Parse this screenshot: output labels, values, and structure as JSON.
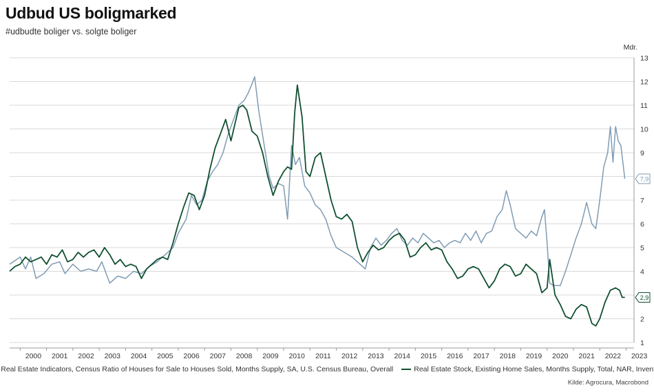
{
  "chart_data": {
    "type": "line",
    "title": "Udbud US boligmarked",
    "subtitle": "#udbudte boliger vs. solgte boliger",
    "ylabel": "Mdr.",
    "ylim": [
      1,
      13
    ],
    "yticks": [
      1,
      2,
      3,
      4,
      5,
      6,
      7,
      8,
      9,
      10,
      11,
      12,
      13
    ],
    "xlim": [
      1999.6,
      2023.3
    ],
    "xticks": [
      "2000",
      "2001",
      "2002",
      "2003",
      "2004",
      "2005",
      "2006",
      "2007",
      "2008",
      "2009",
      "2010",
      "2011",
      "2012",
      "2013",
      "2014",
      "2015",
      "2016",
      "2017",
      "2018",
      "2019",
      "2020",
      "2021",
      "2022",
      "2023"
    ],
    "source": "Kilde: Agrocura, Macrobond",
    "series": [
      {
        "name": "Real Estate Indicators, Census Ratio of Houses for Sale to Houses Sold, Months Supply, SA, U.S. Census Bureau, Overall",
        "color": "#7f9bb3",
        "end_label": "7,9",
        "points": [
          [
            1999.6,
            4.3
          ],
          [
            2000.0,
            4.6
          ],
          [
            2000.2,
            4.1
          ],
          [
            2000.4,
            4.6
          ],
          [
            2000.6,
            3.7
          ],
          [
            2000.9,
            3.9
          ],
          [
            2001.2,
            4.3
          ],
          [
            2001.5,
            4.4
          ],
          [
            2001.7,
            3.9
          ],
          [
            2002.0,
            4.3
          ],
          [
            2002.3,
            4.0
          ],
          [
            2002.6,
            4.1
          ],
          [
            2002.9,
            4.0
          ],
          [
            2003.1,
            4.4
          ],
          [
            2003.4,
            3.5
          ],
          [
            2003.7,
            3.8
          ],
          [
            2004.0,
            3.7
          ],
          [
            2004.3,
            4.0
          ],
          [
            2004.6,
            3.9
          ],
          [
            2004.9,
            4.2
          ],
          [
            2005.2,
            4.4
          ],
          [
            2005.5,
            4.7
          ],
          [
            2005.8,
            5.0
          ],
          [
            2006.0,
            5.6
          ],
          [
            2006.3,
            6.2
          ],
          [
            2006.5,
            7.2
          ],
          [
            2006.7,
            6.8
          ],
          [
            2006.9,
            7.0
          ],
          [
            2007.1,
            7.8
          ],
          [
            2007.3,
            8.2
          ],
          [
            2007.5,
            8.5
          ],
          [
            2007.7,
            9.0
          ],
          [
            2007.9,
            9.8
          ],
          [
            2008.1,
            10.4
          ],
          [
            2008.3,
            11.0
          ],
          [
            2008.5,
            11.2
          ],
          [
            2008.65,
            11.5
          ],
          [
            2008.8,
            11.9
          ],
          [
            2008.9,
            12.2
          ],
          [
            2009.05,
            10.8
          ],
          [
            2009.25,
            9.4
          ],
          [
            2009.45,
            8.0
          ],
          [
            2009.6,
            7.5
          ],
          [
            2009.8,
            7.7
          ],
          [
            2010.0,
            7.6
          ],
          [
            2010.15,
            6.2
          ],
          [
            2010.3,
            9.3
          ],
          [
            2010.45,
            8.5
          ],
          [
            2010.6,
            8.8
          ],
          [
            2010.8,
            7.6
          ],
          [
            2011.0,
            7.3
          ],
          [
            2011.2,
            6.8
          ],
          [
            2011.4,
            6.6
          ],
          [
            2011.6,
            6.2
          ],
          [
            2011.8,
            5.5
          ],
          [
            2012.0,
            5.0
          ],
          [
            2012.3,
            4.8
          ],
          [
            2012.6,
            4.6
          ],
          [
            2012.9,
            4.3
          ],
          [
            2013.1,
            4.1
          ],
          [
            2013.3,
            5.0
          ],
          [
            2013.5,
            5.4
          ],
          [
            2013.7,
            5.1
          ],
          [
            2013.9,
            5.3
          ],
          [
            2014.1,
            5.6
          ],
          [
            2014.3,
            5.8
          ],
          [
            2014.5,
            5.3
          ],
          [
            2014.7,
            5.1
          ],
          [
            2014.9,
            5.4
          ],
          [
            2015.1,
            5.2
          ],
          [
            2015.3,
            5.6
          ],
          [
            2015.5,
            5.4
          ],
          [
            2015.7,
            5.2
          ],
          [
            2015.9,
            5.3
          ],
          [
            2016.1,
            5.0
          ],
          [
            2016.3,
            5.2
          ],
          [
            2016.5,
            5.3
          ],
          [
            2016.7,
            5.2
          ],
          [
            2016.9,
            5.6
          ],
          [
            2017.1,
            5.3
          ],
          [
            2017.3,
            5.7
          ],
          [
            2017.5,
            5.2
          ],
          [
            2017.7,
            5.6
          ],
          [
            2017.9,
            5.7
          ],
          [
            2018.1,
            6.3
          ],
          [
            2018.3,
            6.6
          ],
          [
            2018.45,
            7.4
          ],
          [
            2018.6,
            6.8
          ],
          [
            2018.8,
            5.8
          ],
          [
            2019.0,
            5.6
          ],
          [
            2019.2,
            5.4
          ],
          [
            2019.4,
            5.7
          ],
          [
            2019.6,
            5.5
          ],
          [
            2019.8,
            6.3
          ],
          [
            2019.9,
            6.6
          ],
          [
            2020.0,
            5.2
          ],
          [
            2020.1,
            3.5
          ],
          [
            2020.25,
            3.4
          ],
          [
            2020.5,
            3.4
          ],
          [
            2020.7,
            4.0
          ],
          [
            2020.9,
            4.7
          ],
          [
            2021.1,
            5.4
          ],
          [
            2021.3,
            6.0
          ],
          [
            2021.5,
            6.9
          ],
          [
            2021.7,
            6.0
          ],
          [
            2021.85,
            5.8
          ],
          [
            2022.0,
            7.0
          ],
          [
            2022.15,
            8.4
          ],
          [
            2022.3,
            9.0
          ],
          [
            2022.4,
            10.1
          ],
          [
            2022.5,
            8.6
          ],
          [
            2022.6,
            10.1
          ],
          [
            2022.7,
            9.5
          ],
          [
            2022.8,
            9.3
          ],
          [
            2022.95,
            7.9
          ]
        ]
      },
      {
        "name": "Real Estate Stock, Existing Home Sales, Months Supply, Total, NAR, Inventory",
        "color": "#0f4f2f",
        "end_label": "2,9",
        "points": [
          [
            1999.6,
            4.0
          ],
          [
            1999.8,
            4.2
          ],
          [
            2000.0,
            4.3
          ],
          [
            2000.2,
            4.6
          ],
          [
            2000.4,
            4.4
          ],
          [
            2000.6,
            4.5
          ],
          [
            2000.8,
            4.6
          ],
          [
            2001.0,
            4.3
          ],
          [
            2001.2,
            4.7
          ],
          [
            2001.4,
            4.6
          ],
          [
            2001.6,
            4.9
          ],
          [
            2001.8,
            4.4
          ],
          [
            2002.0,
            4.5
          ],
          [
            2002.2,
            4.8
          ],
          [
            2002.4,
            4.6
          ],
          [
            2002.6,
            4.8
          ],
          [
            2002.8,
            4.9
          ],
          [
            2003.0,
            4.6
          ],
          [
            2003.2,
            5.0
          ],
          [
            2003.4,
            4.7
          ],
          [
            2003.6,
            4.3
          ],
          [
            2003.8,
            4.5
          ],
          [
            2004.0,
            4.2
          ],
          [
            2004.2,
            4.3
          ],
          [
            2004.4,
            4.2
          ],
          [
            2004.6,
            3.7
          ],
          [
            2004.8,
            4.1
          ],
          [
            2005.0,
            4.3
          ],
          [
            2005.2,
            4.5
          ],
          [
            2005.4,
            4.6
          ],
          [
            2005.6,
            4.5
          ],
          [
            2005.8,
            5.2
          ],
          [
            2006.0,
            6.0
          ],
          [
            2006.2,
            6.7
          ],
          [
            2006.4,
            7.3
          ],
          [
            2006.6,
            7.2
          ],
          [
            2006.8,
            6.6
          ],
          [
            2007.0,
            7.2
          ],
          [
            2007.2,
            8.3
          ],
          [
            2007.4,
            9.2
          ],
          [
            2007.6,
            9.8
          ],
          [
            2007.8,
            10.4
          ],
          [
            2008.0,
            9.5
          ],
          [
            2008.15,
            10.2
          ],
          [
            2008.3,
            10.9
          ],
          [
            2008.45,
            11.0
          ],
          [
            2008.6,
            10.8
          ],
          [
            2008.8,
            9.9
          ],
          [
            2009.0,
            9.7
          ],
          [
            2009.2,
            9.0
          ],
          [
            2009.4,
            8.0
          ],
          [
            2009.6,
            7.2
          ],
          [
            2009.8,
            7.8
          ],
          [
            2010.0,
            8.2
          ],
          [
            2010.15,
            8.4
          ],
          [
            2010.3,
            8.3
          ],
          [
            2010.42,
            10.7
          ],
          [
            2010.52,
            11.85
          ],
          [
            2010.7,
            10.5
          ],
          [
            2010.85,
            8.2
          ],
          [
            2011.0,
            8.0
          ],
          [
            2011.2,
            8.8
          ],
          [
            2011.4,
            9.0
          ],
          [
            2011.6,
            8.0
          ],
          [
            2011.8,
            7.0
          ],
          [
            2012.0,
            6.3
          ],
          [
            2012.2,
            6.2
          ],
          [
            2012.4,
            6.4
          ],
          [
            2012.6,
            6.1
          ],
          [
            2012.8,
            5.0
          ],
          [
            2013.0,
            4.4
          ],
          [
            2013.2,
            4.8
          ],
          [
            2013.4,
            5.1
          ],
          [
            2013.6,
            4.9
          ],
          [
            2013.8,
            5.0
          ],
          [
            2014.0,
            5.3
          ],
          [
            2014.2,
            5.5
          ],
          [
            2014.4,
            5.6
          ],
          [
            2014.6,
            5.3
          ],
          [
            2014.8,
            4.6
          ],
          [
            2015.0,
            4.7
          ],
          [
            2015.2,
            5.0
          ],
          [
            2015.4,
            5.2
          ],
          [
            2015.6,
            4.9
          ],
          [
            2015.8,
            5.0
          ],
          [
            2016.0,
            4.9
          ],
          [
            2016.2,
            4.4
          ],
          [
            2016.4,
            4.1
          ],
          [
            2016.6,
            3.7
          ],
          [
            2016.8,
            3.8
          ],
          [
            2017.0,
            4.1
          ],
          [
            2017.2,
            4.2
          ],
          [
            2017.4,
            4.1
          ],
          [
            2017.6,
            3.7
          ],
          [
            2017.8,
            3.3
          ],
          [
            2018.0,
            3.6
          ],
          [
            2018.2,
            4.1
          ],
          [
            2018.4,
            4.3
          ],
          [
            2018.6,
            4.2
          ],
          [
            2018.8,
            3.8
          ],
          [
            2019.0,
            3.9
          ],
          [
            2019.2,
            4.3
          ],
          [
            2019.4,
            4.1
          ],
          [
            2019.6,
            3.9
          ],
          [
            2019.8,
            3.1
          ],
          [
            2020.0,
            3.3
          ],
          [
            2020.1,
            4.5
          ],
          [
            2020.3,
            3.0
          ],
          [
            2020.5,
            2.6
          ],
          [
            2020.7,
            2.1
          ],
          [
            2020.9,
            2.0
          ],
          [
            2021.1,
            2.4
          ],
          [
            2021.3,
            2.6
          ],
          [
            2021.5,
            2.5
          ],
          [
            2021.7,
            1.8
          ],
          [
            2021.85,
            1.7
          ],
          [
            2022.0,
            2.0
          ],
          [
            2022.2,
            2.7
          ],
          [
            2022.4,
            3.2
          ],
          [
            2022.6,
            3.3
          ],
          [
            2022.75,
            3.2
          ],
          [
            2022.85,
            2.9
          ],
          [
            2022.95,
            2.9
          ]
        ]
      }
    ]
  }
}
